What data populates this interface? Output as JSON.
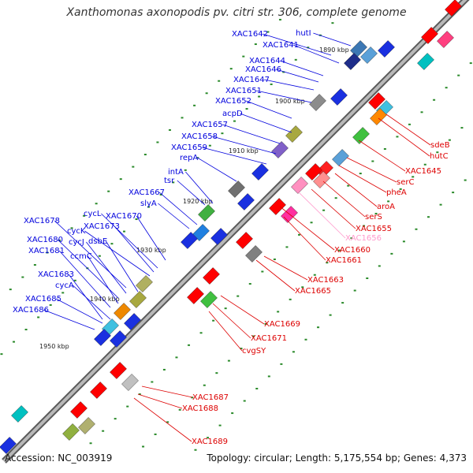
{
  "title": "Xanthomonas axonopodis pv. citri str. 306, complete genome",
  "footer": {
    "accession_label": "Accession:",
    "accession": "NC_003919",
    "summary": "Topology: circular; Length: 5,175,554 bp; Genes: 4,373"
  },
  "colors": {
    "forward_label": "#0000dd",
    "reverse_label": "#dd0000",
    "highlight_label": "#ff99cc",
    "backbone": "#888888",
    "tick": "#2a8a2a"
  },
  "scale_ticks": [
    "1890 kbp",
    "1900 kbp",
    "1910 kbp",
    "1920 kbp",
    "1930 kbp",
    "1940 kbp",
    "1950 kbp"
  ],
  "forward_genes": [
    "XAC1642",
    "hutI",
    "XAC1641",
    "XAC1644",
    "XAC1646",
    "XAC1647",
    "XAC1651",
    "XAC1652",
    "acpD",
    "XAC1657",
    "XAC1658",
    "XAC1659",
    "repA",
    "intA",
    "tsr",
    "XAC1667",
    "slyA",
    "XAC1678",
    "cycL",
    "XAC1670",
    "cycK",
    "XAC1673",
    "XAC1680",
    "cycJ",
    "dsbE",
    "XAC1681",
    "ccmC",
    "XAC1683",
    "cycA",
    "XAC1685",
    "XAC1686"
  ],
  "reverse_genes": [
    "sdeB",
    "hutC",
    "XAC1645",
    "serC",
    "pheA",
    "aroA",
    "serS",
    "XAC1655",
    "XAC1656",
    "XAC1660",
    "XAC1661",
    "XAC1663",
    "XAC1665",
    "XAC1669",
    "XAC1671",
    "cvgSY",
    "XAC1687",
    "XAC1688",
    "XAC1689"
  ],
  "highlighted_genes": [
    "XAC1656"
  ]
}
